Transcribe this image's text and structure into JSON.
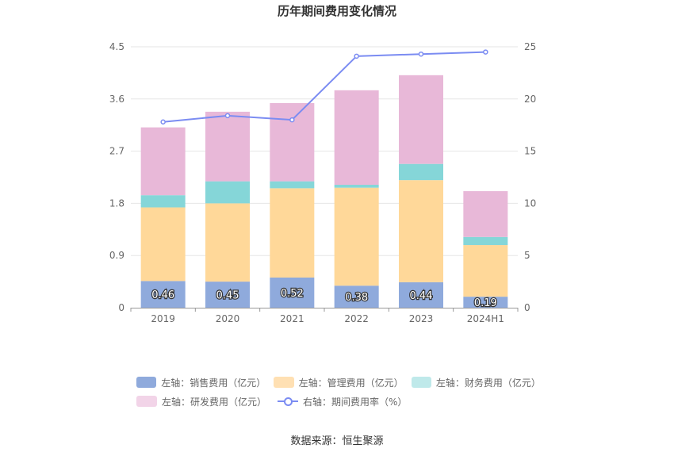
{
  "chart_data": {
    "type": "bar",
    "title": "历年期间费用变化情况",
    "categories": [
      "2019",
      "2020",
      "2021",
      "2022",
      "2023",
      "2024H1"
    ],
    "y_left": {
      "ticks": [
        "0",
        "0.9",
        "1.8",
        "2.7",
        "3.6",
        "4.5"
      ],
      "min": 0,
      "max": 4.5
    },
    "y_right": {
      "ticks": [
        "0",
        "5",
        "10",
        "15",
        "20",
        "25"
      ],
      "min": 0,
      "max": 25
    },
    "series": [
      {
        "name": "左轴：销售费用（亿元）",
        "color": "#8faadc",
        "values": [
          0.46,
          0.45,
          0.52,
          0.38,
          0.44,
          0.19
        ],
        "labels": [
          "0.46",
          "0.45",
          "0.52",
          "0.38",
          "0.44",
          "0.19"
        ]
      },
      {
        "name": "左轴：管理费用（亿元）",
        "color": "#ffd899",
        "values": [
          1.27,
          1.35,
          1.54,
          1.69,
          1.76,
          0.89
        ]
      },
      {
        "name": "左轴：财务费用（亿元）",
        "color": "#85d6d8",
        "values": [
          0.21,
          0.38,
          0.12,
          0.05,
          0.28,
          0.14
        ]
      },
      {
        "name": "左轴：研发费用（亿元）",
        "color": "#e8b8d8",
        "values": [
          1.17,
          1.2,
          1.35,
          1.63,
          1.53,
          0.79
        ]
      }
    ],
    "line": {
      "name": "右轴：期间费用率（%）",
      "color": "#7b8cf2",
      "values": [
        17.8,
        18.4,
        18.0,
        24.1,
        24.3,
        24.5
      ]
    }
  },
  "legend": {
    "sales": "左轴：销售费用（亿元）",
    "admin": "左轴：管理费用（亿元）",
    "finance": "左轴：财务费用（亿元）",
    "rd": "左轴：研发费用（亿元）",
    "rate": "右轴：期间费用率（%）"
  },
  "colors": {
    "sales": "#8faadc",
    "admin": "#ffe0b3",
    "finance": "#bfe9ea",
    "rd": "#f2d4e8",
    "line": "#7b8cf2"
  },
  "source": "数据来源：恒生聚源"
}
